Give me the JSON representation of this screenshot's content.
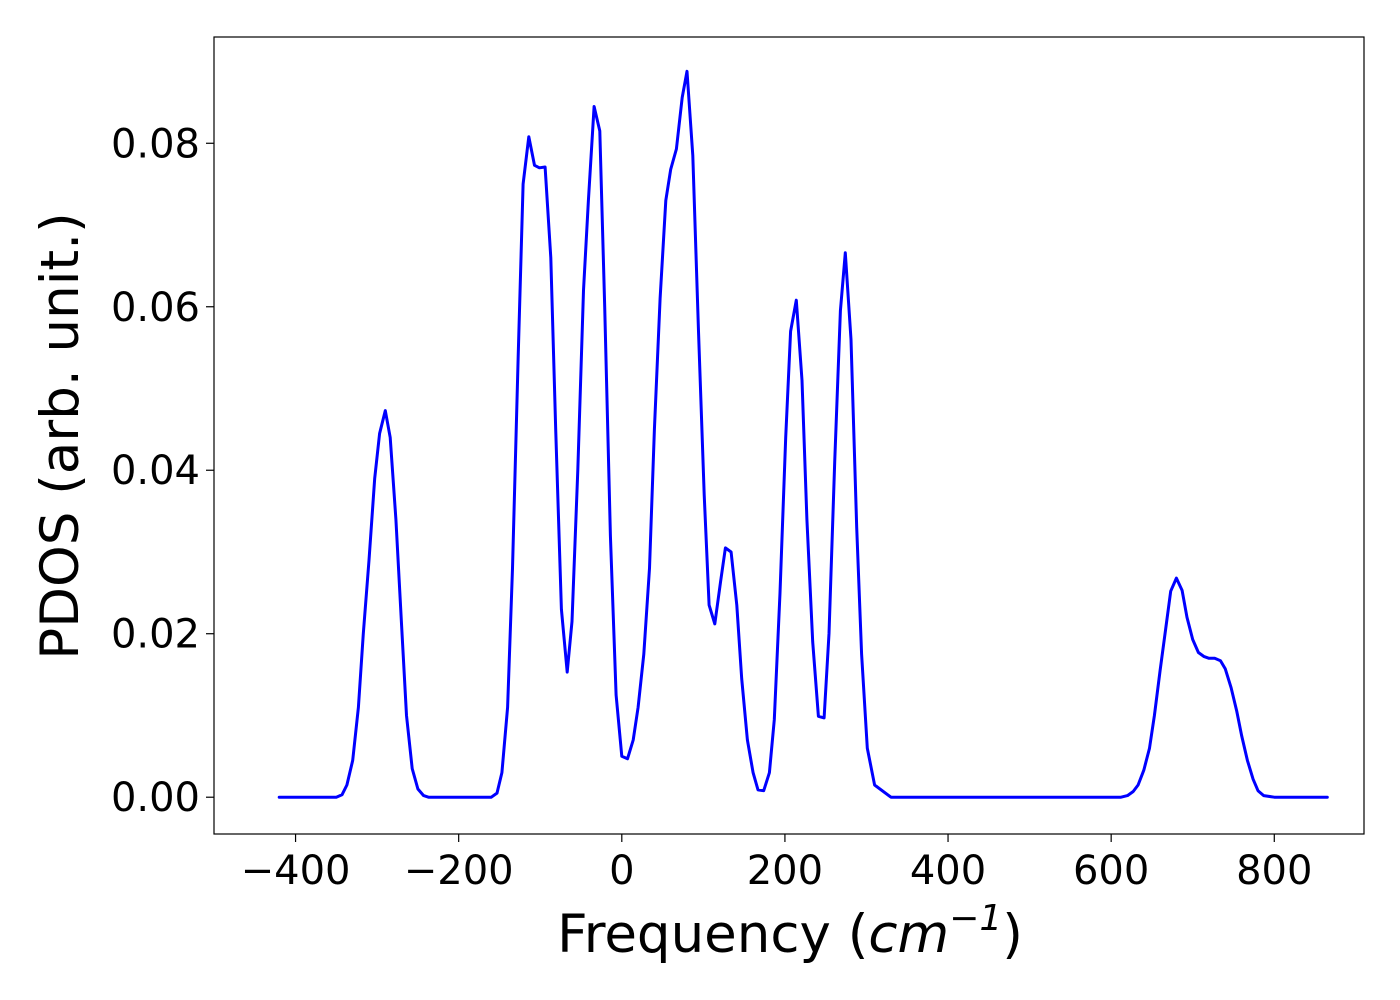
{
  "chart_data": {
    "type": "line",
    "xlabel_prefix": "Frequency (",
    "xlabel_unit_base": "cm",
    "xlabel_unit_exp": "−1",
    "xlabel_suffix": ")",
    "ylabel": "PDOS (arb. unit.)",
    "xlim": [
      -500,
      910
    ],
    "ylim": [
      -0.0045,
      0.093
    ],
    "xticks": [
      -400,
      -200,
      0,
      200,
      400,
      600,
      800
    ],
    "xtick_labels": [
      "−400",
      "−200",
      "0",
      "200",
      "400",
      "600",
      "800"
    ],
    "yticks": [
      0.0,
      0.02,
      0.04,
      0.06,
      0.08
    ],
    "ytick_labels": [
      "0.00",
      "0.02",
      "0.04",
      "0.06",
      "0.08"
    ],
    "grid": false,
    "series": [
      {
        "color": "#0000ff",
        "x": [
          -420,
          -400,
          -380,
          -360,
          -350,
          -343,
          -337,
          -330,
          -323,
          -317,
          -310,
          -303,
          -297,
          -290,
          -284,
          -277,
          -270,
          -264,
          -257,
          -250,
          -243,
          -237,
          -230,
          -210,
          -190,
          -170,
          -160,
          -153,
          -147,
          -140,
          -134,
          -127,
          -121,
          -114,
          -107,
          -101,
          -94,
          -87,
          -81,
          -74,
          -67,
          -61,
          -54,
          -47,
          -41,
          -34,
          -27,
          -21,
          -14,
          -7,
          0,
          7,
          14,
          20,
          27,
          34,
          40,
          47,
          54,
          60,
          67,
          74,
          80,
          87,
          94,
          101,
          107,
          114,
          121,
          127,
          134,
          141,
          147,
          154,
          161,
          167,
          174,
          181,
          187,
          194,
          201,
          207,
          214,
          221,
          227,
          234,
          241,
          248,
          254,
          261,
          268,
          274,
          281,
          288,
          294,
          301,
          310,
          330,
          400,
          500,
          600,
          612,
          620,
          627,
          633,
          640,
          647,
          653,
          660,
          667,
          673,
          680,
          687,
          693,
          700,
          707,
          714,
          720,
          727,
          734,
          740,
          747,
          754,
          760,
          767,
          774,
          780,
          787,
          800,
          865
        ],
        "y": [
          0.0,
          0.0,
          0.0,
          0.0,
          0.0,
          0.0003,
          0.0015,
          0.0045,
          0.011,
          0.02,
          0.029,
          0.039,
          0.0445,
          0.0473,
          0.044,
          0.034,
          0.021,
          0.01,
          0.0035,
          0.001,
          0.0002,
          0.0,
          0.0,
          0.0,
          0.0,
          0.0,
          0.0,
          0.0005,
          0.003,
          0.011,
          0.028,
          0.054,
          0.075,
          0.0808,
          0.0773,
          0.077,
          0.0771,
          0.066,
          0.045,
          0.023,
          0.0153,
          0.0215,
          0.04,
          0.062,
          0.073,
          0.0845,
          0.0815,
          0.06,
          0.032,
          0.0125,
          0.005,
          0.0047,
          0.007,
          0.011,
          0.0175,
          0.028,
          0.045,
          0.061,
          0.073,
          0.0768,
          0.0793,
          0.0856,
          0.0888,
          0.0785,
          0.057,
          0.037,
          0.0235,
          0.0212,
          0.0263,
          0.0305,
          0.03,
          0.0235,
          0.0145,
          0.007,
          0.003,
          0.0009,
          0.0008,
          0.003,
          0.0095,
          0.025,
          0.044,
          0.057,
          0.0608,
          0.051,
          0.034,
          0.019,
          0.0099,
          0.0097,
          0.02,
          0.041,
          0.0595,
          0.0666,
          0.056,
          0.033,
          0.0175,
          0.006,
          0.0015,
          0.0,
          0.0,
          0.0,
          0.0,
          0.0,
          0.0002,
          0.0007,
          0.0015,
          0.0033,
          0.006,
          0.01,
          0.0155,
          0.0207,
          0.0252,
          0.0268,
          0.0253,
          0.022,
          0.0193,
          0.0177,
          0.0172,
          0.017,
          0.017,
          0.0167,
          0.0157,
          0.0134,
          0.0105,
          0.0075,
          0.0045,
          0.0022,
          0.0008,
          0.0002,
          0.0,
          0.0
        ]
      }
    ]
  }
}
